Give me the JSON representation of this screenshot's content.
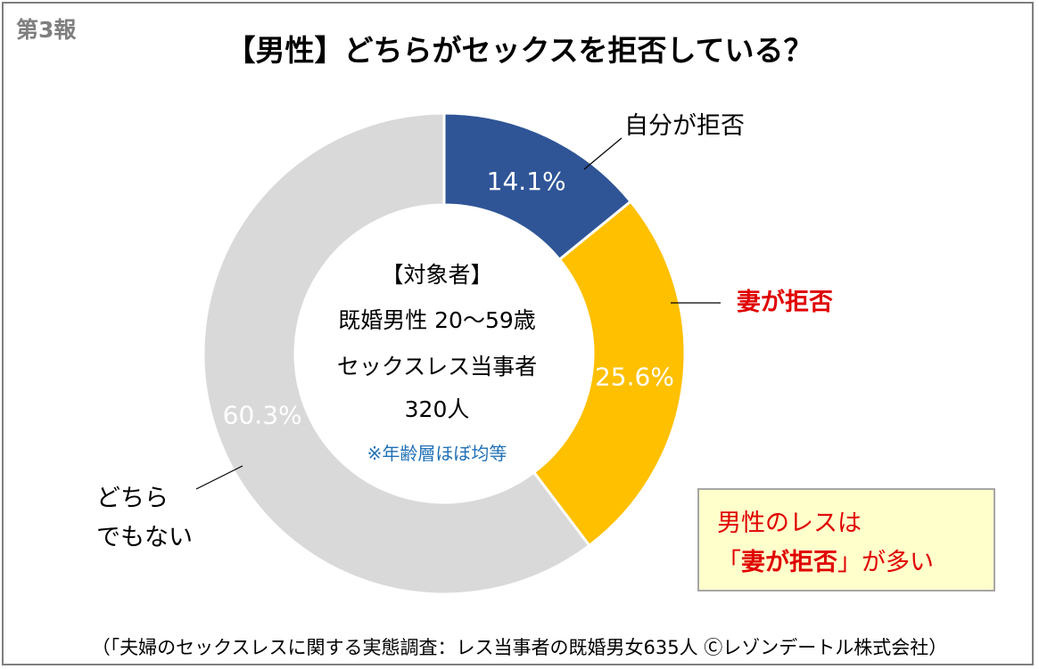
{
  "report_tag": "第3報",
  "title": "【男性】どちらがセックスを拒否している？",
  "center": {
    "heading": "【対象者】",
    "line1": "既婚男性 20～59歳",
    "line2": "セックスレス当事者",
    "line3": "320人",
    "note": "※年齢層ほぼ均等"
  },
  "callout": {
    "line1": "男性のレスは",
    "line2_open": "「",
    "line2_emph": "妻が拒否",
    "line2_close": "」が多い"
  },
  "source": "（「夫婦のセックスレスに関する実態調査：レス当事者の既婚男女635人 Ⓒレゾンデートル株式会社）",
  "labels": {
    "self": "自分が拒否",
    "wife": "妻が拒否",
    "neither_line1": "どちら",
    "neither_line2": "でもない"
  },
  "colors": {
    "self": "#2f5597",
    "wife": "#ffc000",
    "neither": "#d9d9d9",
    "emphasis": "#e00000"
  },
  "chart_data": {
    "type": "pie",
    "categories": [
      "自分が拒否",
      "妻が拒否",
      "どちらでもない"
    ],
    "values": [
      14.1,
      25.6,
      60.3
    ],
    "value_labels": [
      "14.1%",
      "25.6%",
      "60.3%"
    ],
    "title": "【男性】どちらがセックスを拒否している？"
  }
}
